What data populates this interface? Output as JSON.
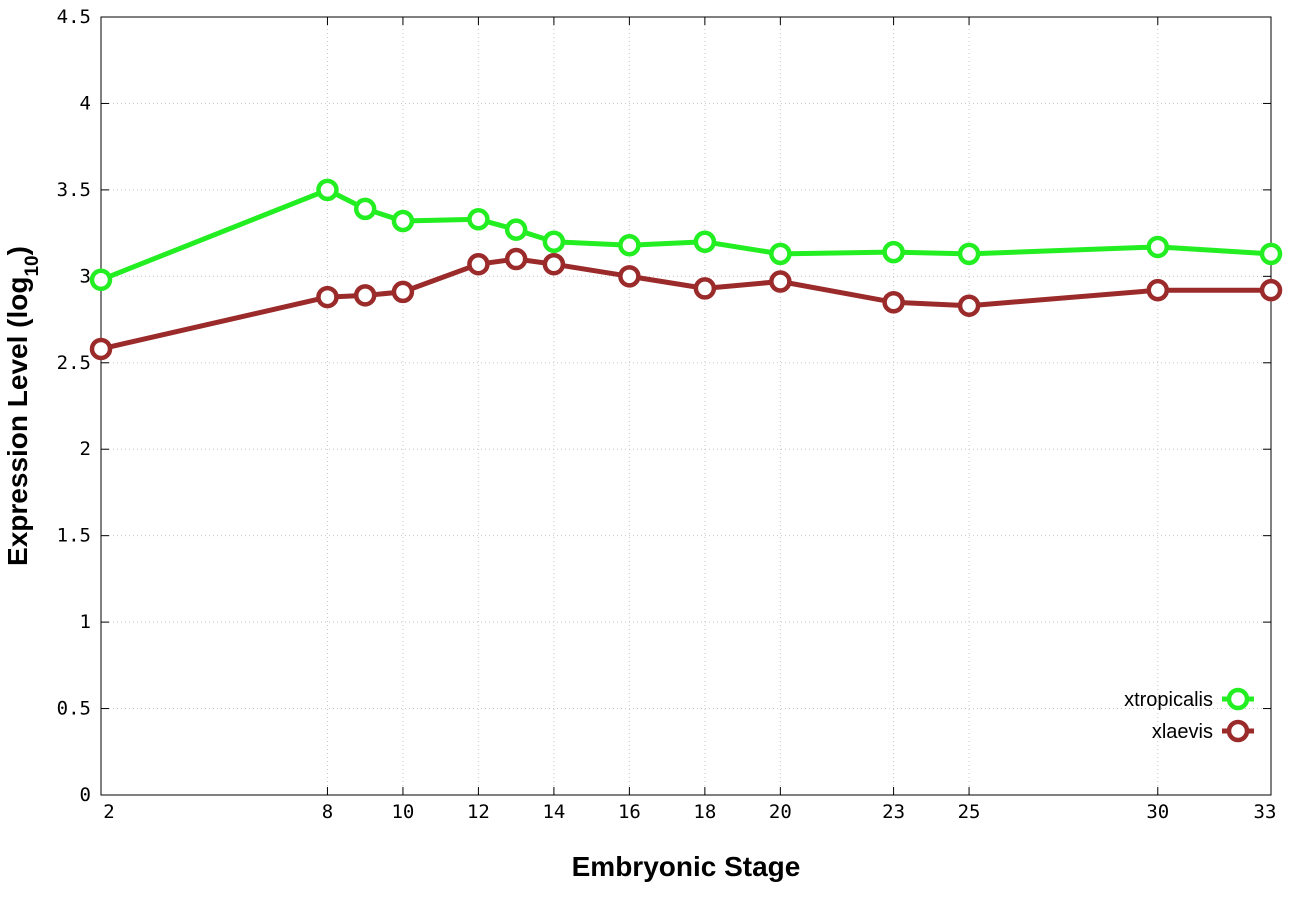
{
  "chart_data": {
    "type": "line",
    "title": "",
    "xlabel": "Embryonic Stage",
    "ylabel_main": "Expression Level (log",
    "ylabel_sub": "10",
    "ylabel_close": ")",
    "xlim": [
      2,
      33
    ],
    "ylim": [
      0,
      4.5
    ],
    "x_ticks": [
      2,
      8,
      10,
      12,
      14,
      16,
      18,
      20,
      23,
      25,
      30,
      33
    ],
    "y_ticks": [
      0,
      0.5,
      1,
      1.5,
      2,
      2.5,
      3,
      3.5,
      4,
      4.5
    ],
    "y_tick_labels": [
      "0",
      "0.5",
      "1",
      "1.5",
      "2",
      "2.5",
      "3",
      "3.5",
      "4",
      "4.5"
    ],
    "grid": true,
    "legend_position": "bottom-right",
    "series": [
      {
        "name": "xtropicalis",
        "color": "#22ee22",
        "x": [
          2,
          8,
          9,
          10,
          12,
          13,
          14,
          16,
          18,
          20,
          23,
          25,
          30,
          33
        ],
        "y": [
          2.98,
          3.5,
          3.39,
          3.32,
          3.33,
          3.27,
          3.2,
          3.18,
          3.2,
          3.13,
          3.14,
          3.13,
          3.17,
          3.13
        ]
      },
      {
        "name": "xlaevis",
        "color": "#9b2a2a",
        "x": [
          2,
          8,
          9,
          10,
          12,
          13,
          14,
          16,
          18,
          20,
          23,
          25,
          30,
          33
        ],
        "y": [
          2.58,
          2.88,
          2.89,
          2.91,
          3.07,
          3.1,
          3.07,
          3.0,
          2.93,
          2.97,
          2.85,
          2.83,
          2.92,
          2.92
        ]
      }
    ]
  }
}
